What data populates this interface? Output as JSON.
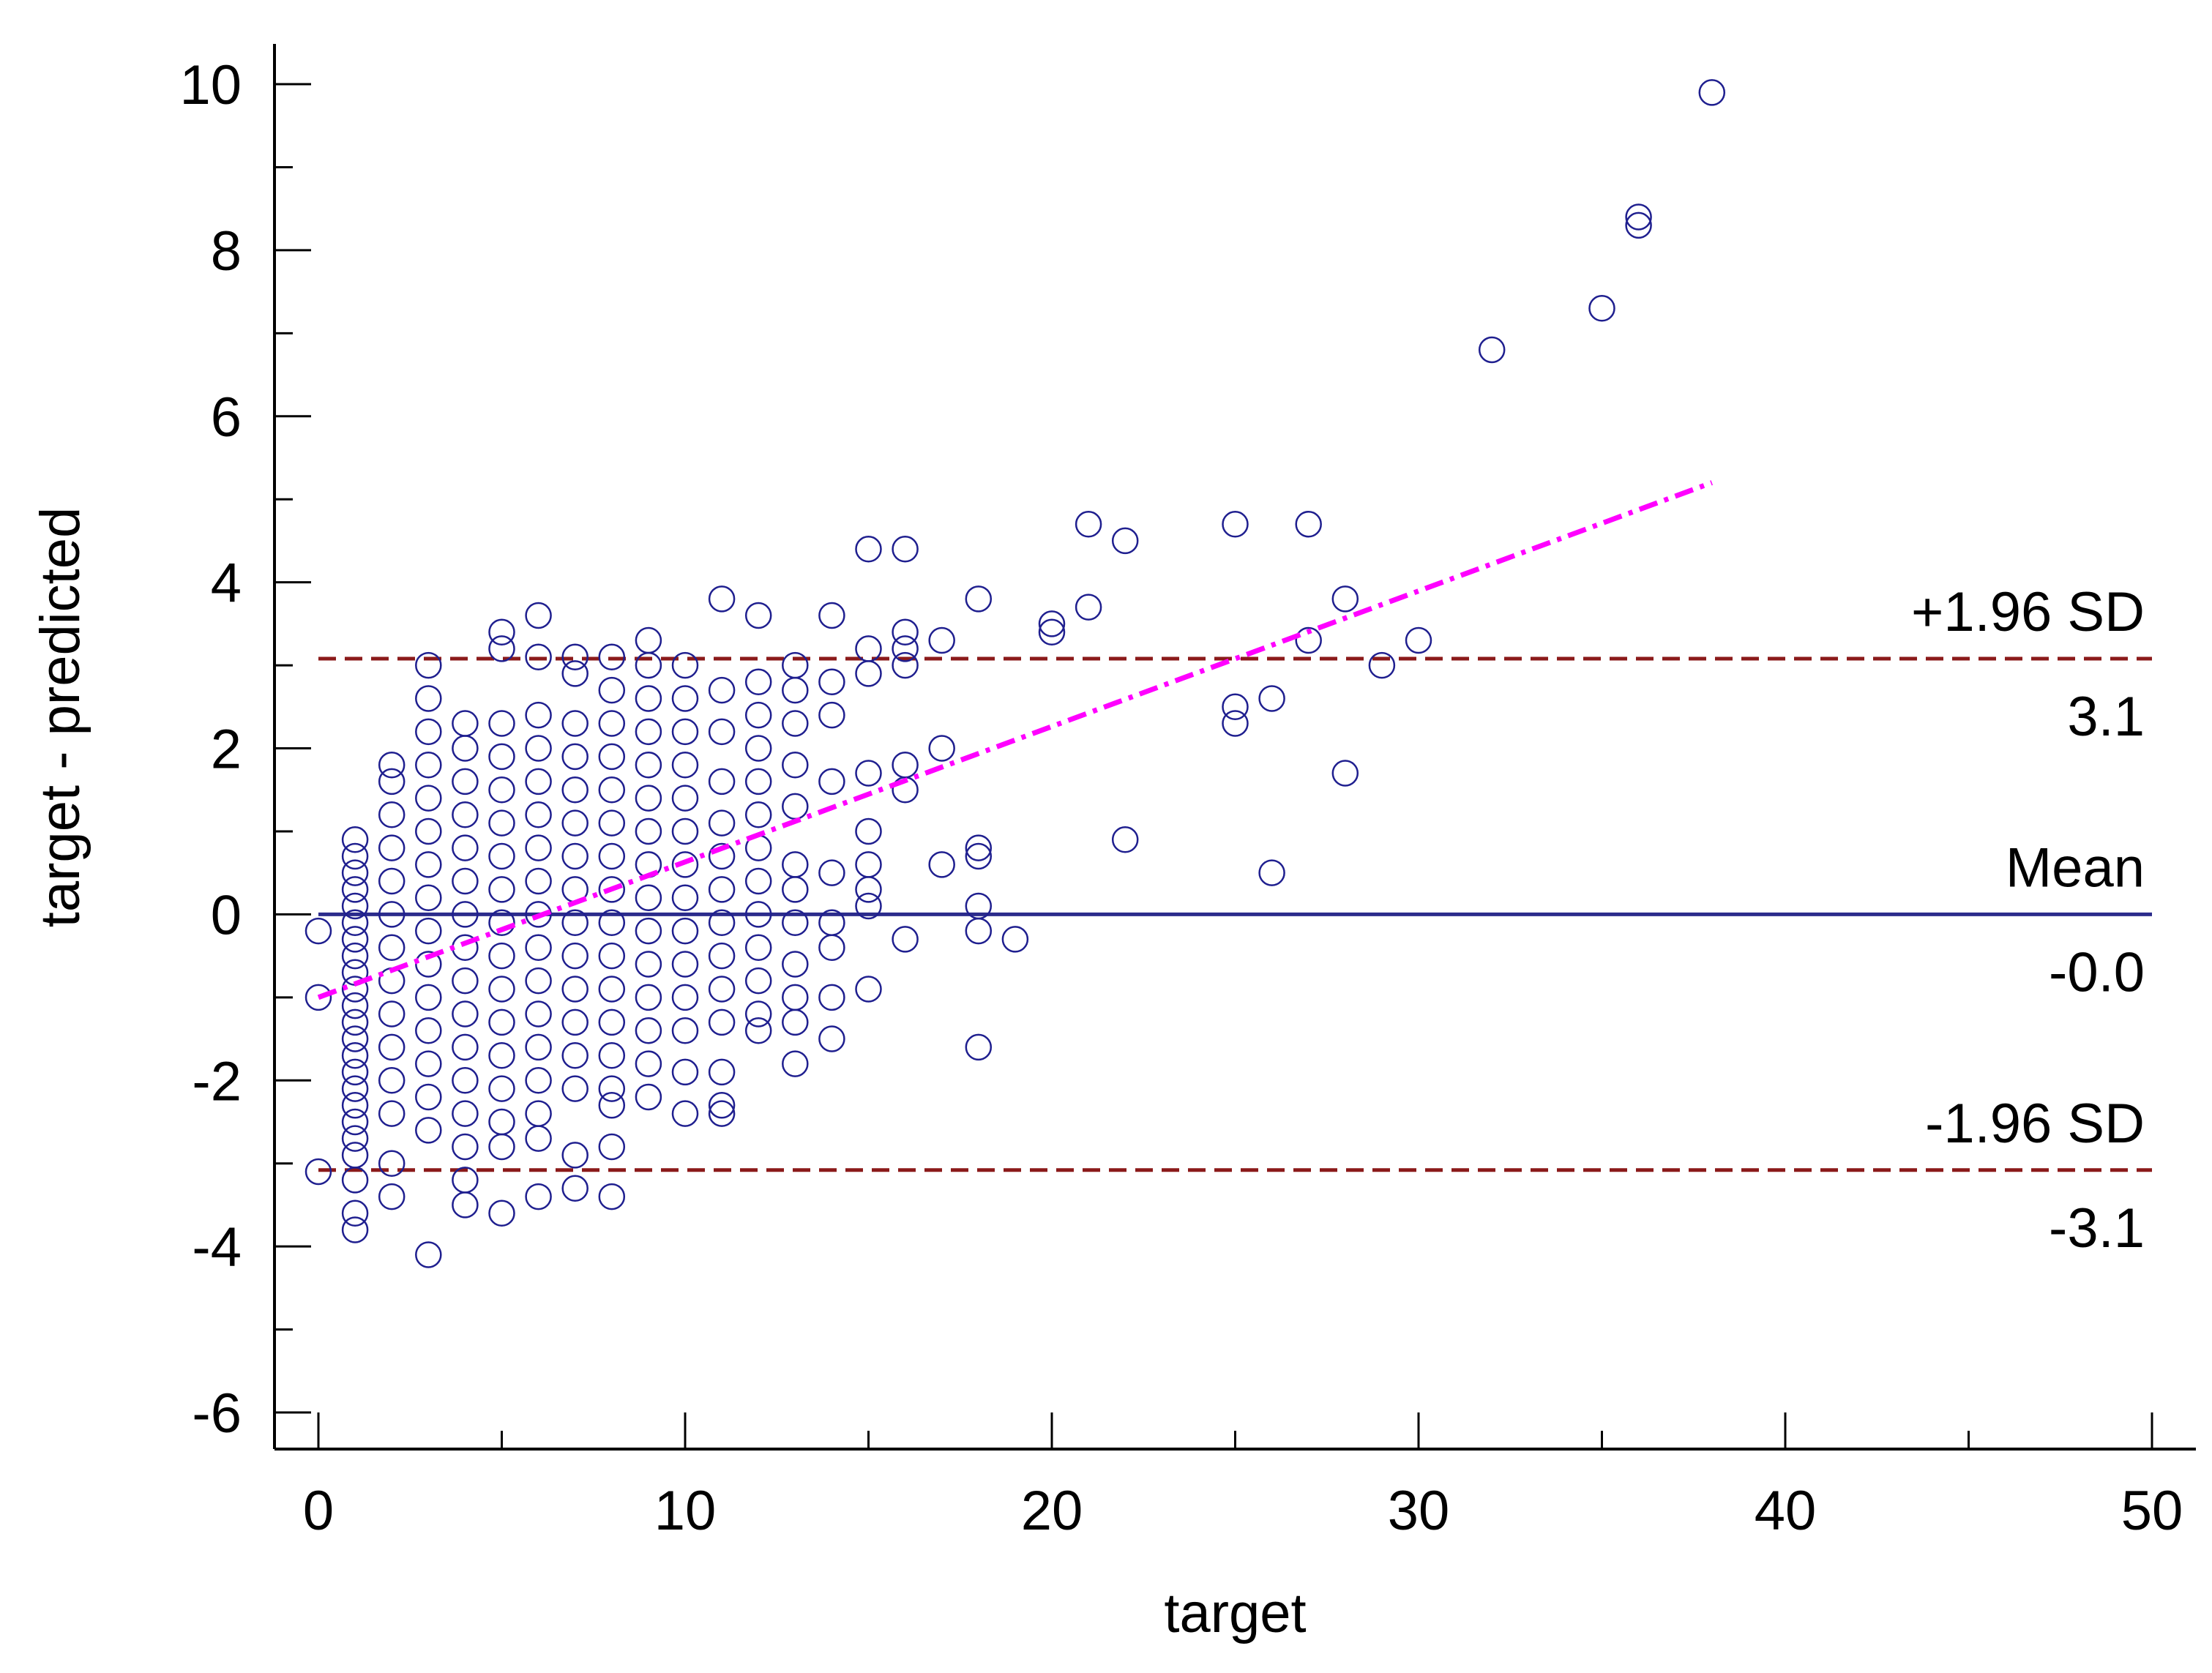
{
  "chart_data": {
    "type": "scatter",
    "title": "",
    "xlabel": "target",
    "ylabel": "target - predicted",
    "xlim": [
      0,
      50
    ],
    "ylim": [
      -6,
      10
    ],
    "x_ticks": [
      0,
      10,
      20,
      30,
      40,
      50
    ],
    "y_ticks": [
      -6,
      -4,
      -2,
      0,
      2,
      4,
      6,
      8,
      10
    ],
    "grid": false,
    "colors": {
      "points": "#1f1f8f",
      "mean_line": "#2b2b8c",
      "limit_lines": "#8b1a1a",
      "regression_line": "#ff00ff"
    },
    "reference_lines": [
      {
        "label": "+1.96 SD",
        "value_label": "3.1",
        "y": 3.08,
        "style": "dashed"
      },
      {
        "label": "Mean",
        "value_label": "-0.0",
        "y": 0.0,
        "style": "solid"
      },
      {
        "label": "-1.96 SD",
        "value_label": "-3.1",
        "y": -3.08,
        "style": "dashed"
      }
    ],
    "regression_line": {
      "x": [
        0,
        38
      ],
      "y": [
        -1.0,
        5.2
      ],
      "style": "dash-dot"
    },
    "series": [
      {
        "values": [
          [
            0,
            -0.2
          ],
          [
            0,
            -1.0
          ],
          [
            0,
            -3.1
          ],
          [
            1,
            0.9
          ],
          [
            1,
            0.7
          ],
          [
            1,
            0.5
          ],
          [
            1,
            0.3
          ],
          [
            1,
            0.1
          ],
          [
            1,
            -0.1
          ],
          [
            1,
            -0.3
          ],
          [
            1,
            -0.5
          ],
          [
            1,
            -0.7
          ],
          [
            1,
            -0.9
          ],
          [
            1,
            -1.1
          ],
          [
            1,
            -1.3
          ],
          [
            1,
            -1.5
          ],
          [
            1,
            -1.7
          ],
          [
            1,
            -1.9
          ],
          [
            1,
            -2.1
          ],
          [
            1,
            -2.3
          ],
          [
            1,
            -2.5
          ],
          [
            1,
            -2.7
          ],
          [
            1,
            -2.9
          ],
          [
            1,
            -3.2
          ],
          [
            1,
            -3.6
          ],
          [
            1,
            -3.8
          ],
          [
            2,
            1.8
          ],
          [
            2,
            1.6
          ],
          [
            2,
            1.2
          ],
          [
            2,
            0.8
          ],
          [
            2,
            0.4
          ],
          [
            2,
            0.0
          ],
          [
            2,
            -0.4
          ],
          [
            2,
            -0.8
          ],
          [
            2,
            -1.2
          ],
          [
            2,
            -1.6
          ],
          [
            2,
            -2.0
          ],
          [
            2,
            -2.4
          ],
          [
            2,
            -3.0
          ],
          [
            2,
            -3.4
          ],
          [
            3,
            3.0
          ],
          [
            3,
            2.6
          ],
          [
            3,
            2.2
          ],
          [
            3,
            1.8
          ],
          [
            3,
            1.4
          ],
          [
            3,
            1.0
          ],
          [
            3,
            0.6
          ],
          [
            3,
            0.2
          ],
          [
            3,
            -0.2
          ],
          [
            3,
            -0.6
          ],
          [
            3,
            -1.0
          ],
          [
            3,
            -1.4
          ],
          [
            3,
            -1.8
          ],
          [
            3,
            -2.2
          ],
          [
            3,
            -2.6
          ],
          [
            3,
            -4.1
          ],
          [
            4,
            2.3
          ],
          [
            4,
            2.0
          ],
          [
            4,
            1.6
          ],
          [
            4,
            1.2
          ],
          [
            4,
            0.8
          ],
          [
            4,
            0.4
          ],
          [
            4,
            0.0
          ],
          [
            4,
            -0.4
          ],
          [
            4,
            -0.8
          ],
          [
            4,
            -1.2
          ],
          [
            4,
            -1.6
          ],
          [
            4,
            -2.0
          ],
          [
            4,
            -2.4
          ],
          [
            4,
            -2.8
          ],
          [
            4,
            -3.2
          ],
          [
            4,
            -3.5
          ],
          [
            5,
            3.4
          ],
          [
            5,
            3.2
          ],
          [
            5,
            2.3
          ],
          [
            5,
            1.9
          ],
          [
            5,
            1.5
          ],
          [
            5,
            1.1
          ],
          [
            5,
            0.7
          ],
          [
            5,
            0.3
          ],
          [
            5,
            -0.1
          ],
          [
            5,
            -0.5
          ],
          [
            5,
            -0.9
          ],
          [
            5,
            -1.3
          ],
          [
            5,
            -1.7
          ],
          [
            5,
            -2.1
          ],
          [
            5,
            -2.5
          ],
          [
            5,
            -2.8
          ],
          [
            5,
            -3.6
          ],
          [
            6,
            3.6
          ],
          [
            6,
            3.1
          ],
          [
            6,
            2.4
          ],
          [
            6,
            2.0
          ],
          [
            6,
            1.6
          ],
          [
            6,
            1.2
          ],
          [
            6,
            0.8
          ],
          [
            6,
            0.4
          ],
          [
            6,
            0.0
          ],
          [
            6,
            -0.4
          ],
          [
            6,
            -0.8
          ],
          [
            6,
            -1.2
          ],
          [
            6,
            -1.6
          ],
          [
            6,
            -2.0
          ],
          [
            6,
            -2.4
          ],
          [
            6,
            -2.7
          ],
          [
            6,
            -3.4
          ],
          [
            7,
            3.1
          ],
          [
            7,
            2.9
          ],
          [
            7,
            2.3
          ],
          [
            7,
            1.9
          ],
          [
            7,
            1.5
          ],
          [
            7,
            1.1
          ],
          [
            7,
            0.7
          ],
          [
            7,
            0.3
          ],
          [
            7,
            -0.1
          ],
          [
            7,
            -0.5
          ],
          [
            7,
            -0.9
          ],
          [
            7,
            -1.3
          ],
          [
            7,
            -1.7
          ],
          [
            7,
            -2.1
          ],
          [
            7,
            -2.9
          ],
          [
            7,
            -3.3
          ],
          [
            8,
            3.1
          ],
          [
            8,
            2.7
          ],
          [
            8,
            2.3
          ],
          [
            8,
            1.9
          ],
          [
            8,
            1.5
          ],
          [
            8,
            1.1
          ],
          [
            8,
            0.7
          ],
          [
            8,
            0.3
          ],
          [
            8,
            -0.1
          ],
          [
            8,
            -0.5
          ],
          [
            8,
            -0.9
          ],
          [
            8,
            -1.3
          ],
          [
            8,
            -1.7
          ],
          [
            8,
            -2.1
          ],
          [
            8,
            -2.3
          ],
          [
            8,
            -2.8
          ],
          [
            8,
            -3.4
          ],
          [
            9,
            3.3
          ],
          [
            9,
            3.0
          ],
          [
            9,
            2.6
          ],
          [
            9,
            2.2
          ],
          [
            9,
            1.8
          ],
          [
            9,
            1.4
          ],
          [
            9,
            1.0
          ],
          [
            9,
            0.6
          ],
          [
            9,
            0.2
          ],
          [
            9,
            -0.2
          ],
          [
            9,
            -0.6
          ],
          [
            9,
            -1.0
          ],
          [
            9,
            -1.4
          ],
          [
            9,
            -1.8
          ],
          [
            9,
            -2.2
          ],
          [
            10,
            3.0
          ],
          [
            10,
            2.6
          ],
          [
            10,
            2.2
          ],
          [
            10,
            1.8
          ],
          [
            10,
            1.4
          ],
          [
            10,
            1.0
          ],
          [
            10,
            0.6
          ],
          [
            10,
            0.2
          ],
          [
            10,
            -0.2
          ],
          [
            10,
            -0.6
          ],
          [
            10,
            -1.0
          ],
          [
            10,
            -1.4
          ],
          [
            10,
            -1.9
          ],
          [
            10,
            -2.4
          ],
          [
            11,
            3.8
          ],
          [
            11,
            2.7
          ],
          [
            11,
            2.2
          ],
          [
            11,
            1.6
          ],
          [
            11,
            1.1
          ],
          [
            11,
            0.7
          ],
          [
            11,
            0.3
          ],
          [
            11,
            -0.1
          ],
          [
            11,
            -0.5
          ],
          [
            11,
            -0.9
          ],
          [
            11,
            -1.3
          ],
          [
            11,
            -1.9
          ],
          [
            11,
            -2.3
          ],
          [
            11,
            -2.4
          ],
          [
            12,
            3.6
          ],
          [
            12,
            2.8
          ],
          [
            12,
            2.4
          ],
          [
            12,
            2.0
          ],
          [
            12,
            1.6
          ],
          [
            12,
            1.2
          ],
          [
            12,
            0.8
          ],
          [
            12,
            0.4
          ],
          [
            12,
            0.0
          ],
          [
            12,
            -0.4
          ],
          [
            12,
            -0.8
          ],
          [
            12,
            -1.2
          ],
          [
            12,
            -1.4
          ],
          [
            13,
            3.0
          ],
          [
            13,
            2.7
          ],
          [
            13,
            2.3
          ],
          [
            13,
            1.8
          ],
          [
            13,
            1.3
          ],
          [
            13,
            0.6
          ],
          [
            13,
            0.3
          ],
          [
            13,
            -0.1
          ],
          [
            13,
            -0.6
          ],
          [
            13,
            -1.0
          ],
          [
            13,
            -1.3
          ],
          [
            13,
            -1.8
          ],
          [
            14,
            3.6
          ],
          [
            14,
            2.8
          ],
          [
            14,
            2.4
          ],
          [
            14,
            1.6
          ],
          [
            14,
            0.5
          ],
          [
            14,
            -0.1
          ],
          [
            14,
            -0.4
          ],
          [
            14,
            -1.0
          ],
          [
            14,
            -1.5
          ],
          [
            15,
            4.4
          ],
          [
            15,
            3.2
          ],
          [
            15,
            2.9
          ],
          [
            15,
            1.7
          ],
          [
            15,
            1.0
          ],
          [
            15,
            0.6
          ],
          [
            15,
            0.3
          ],
          [
            15,
            0.1
          ],
          [
            15,
            -0.9
          ],
          [
            16,
            4.4
          ],
          [
            16,
            3.4
          ],
          [
            16,
            3.2
          ],
          [
            16,
            3.0
          ],
          [
            16,
            1.8
          ],
          [
            16,
            1.5
          ],
          [
            16,
            -0.3
          ],
          [
            17,
            3.3
          ],
          [
            17,
            2.0
          ],
          [
            17,
            0.6
          ],
          [
            18,
            3.8
          ],
          [
            18,
            0.8
          ],
          [
            18,
            0.7
          ],
          [
            18,
            0.1
          ],
          [
            18,
            -0.2
          ],
          [
            18,
            -1.6
          ],
          [
            19,
            -0.3
          ],
          [
            20,
            3.5
          ],
          [
            20,
            3.4
          ],
          [
            21,
            4.7
          ],
          [
            21,
            3.7
          ],
          [
            22,
            4.5
          ],
          [
            22,
            0.9
          ],
          [
            25,
            4.7
          ],
          [
            25,
            2.5
          ],
          [
            25,
            2.3
          ],
          [
            26,
            2.6
          ],
          [
            26,
            0.5
          ],
          [
            27,
            4.7
          ],
          [
            27,
            3.3
          ],
          [
            28,
            3.8
          ],
          [
            28,
            1.7
          ],
          [
            29,
            3.0
          ],
          [
            30,
            3.3
          ],
          [
            32,
            6.8
          ],
          [
            35,
            7.3
          ],
          [
            36,
            8.4
          ],
          [
            36,
            8.3
          ],
          [
            38,
            9.9
          ]
        ]
      }
    ]
  }
}
